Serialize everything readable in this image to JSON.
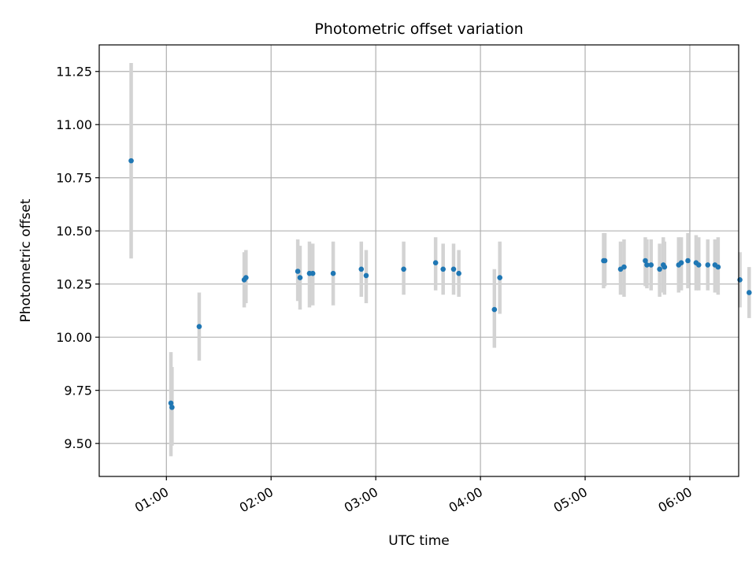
{
  "chart_data": {
    "type": "scatter",
    "title": "Photometric offset variation",
    "xlabel": "UTC time",
    "ylabel": "Photometric offset",
    "grid": true,
    "x_unit": "minutes after 00:00 UTC",
    "xlim": [
      21.5,
      388.0
    ],
    "ylim": [
      9.345,
      11.375
    ],
    "xticks": [
      {
        "value": 60,
        "label": "01:00"
      },
      {
        "value": 120,
        "label": "02:00"
      },
      {
        "value": 180,
        "label": "03:00"
      },
      {
        "value": 240,
        "label": "04:00"
      },
      {
        "value": 300,
        "label": "05:00"
      },
      {
        "value": 360,
        "label": "06:00"
      }
    ],
    "yticks": [
      {
        "value": 9.5,
        "label": "9.50"
      },
      {
        "value": 9.75,
        "label": "9.75"
      },
      {
        "value": 10.0,
        "label": "10.00"
      },
      {
        "value": 10.25,
        "label": "10.25"
      },
      {
        "value": 10.5,
        "label": "10.50"
      },
      {
        "value": 10.75,
        "label": "10.75"
      },
      {
        "value": 11.0,
        "label": "11.00"
      },
      {
        "value": 11.25,
        "label": "11.25"
      }
    ],
    "colors": {
      "point": "#1f77b4",
      "errorbar": "#d3d3d3",
      "grid": "#b0b0b0"
    },
    "points": [
      {
        "x": 39.8,
        "y": 10.83,
        "lo": 10.37,
        "hi": 11.29
      },
      {
        "x": 62.6,
        "y": 9.69,
        "lo": 9.44,
        "hi": 9.93
      },
      {
        "x": 63.2,
        "y": 9.67,
        "lo": 9.49,
        "hi": 9.86
      },
      {
        "x": 78.8,
        "y": 10.05,
        "lo": 9.89,
        "hi": 10.21
      },
      {
        "x": 104.6,
        "y": 10.27,
        "lo": 10.14,
        "hi": 10.4
      },
      {
        "x": 105.6,
        "y": 10.28,
        "lo": 10.16,
        "hi": 10.41
      },
      {
        "x": 135.3,
        "y": 10.31,
        "lo": 10.17,
        "hi": 10.46
      },
      {
        "x": 136.6,
        "y": 10.28,
        "lo": 10.13,
        "hi": 10.43
      },
      {
        "x": 142.0,
        "y": 10.3,
        "lo": 10.14,
        "hi": 10.45
      },
      {
        "x": 143.9,
        "y": 10.3,
        "lo": 10.15,
        "hi": 10.44
      },
      {
        "x": 155.6,
        "y": 10.3,
        "lo": 10.15,
        "hi": 10.45
      },
      {
        "x": 171.7,
        "y": 10.32,
        "lo": 10.19,
        "hi": 10.45
      },
      {
        "x": 174.5,
        "y": 10.29,
        "lo": 10.16,
        "hi": 10.41
      },
      {
        "x": 196.0,
        "y": 10.32,
        "lo": 10.2,
        "hi": 10.45
      },
      {
        "x": 214.3,
        "y": 10.35,
        "lo": 10.22,
        "hi": 10.47
      },
      {
        "x": 218.6,
        "y": 10.32,
        "lo": 10.2,
        "hi": 10.44
      },
      {
        "x": 224.6,
        "y": 10.32,
        "lo": 10.2,
        "hi": 10.44
      },
      {
        "x": 227.6,
        "y": 10.3,
        "lo": 10.19,
        "hi": 10.41
      },
      {
        "x": 248.0,
        "y": 10.13,
        "lo": 9.95,
        "hi": 10.32
      },
      {
        "x": 251.1,
        "y": 10.28,
        "lo": 10.11,
        "hi": 10.45
      },
      {
        "x": 310.6,
        "y": 10.36,
        "lo": 10.23,
        "hi": 10.49
      },
      {
        "x": 311.3,
        "y": 10.36,
        "lo": 10.24,
        "hi": 10.49
      },
      {
        "x": 320.3,
        "y": 10.32,
        "lo": 10.2,
        "hi": 10.45
      },
      {
        "x": 322.3,
        "y": 10.33,
        "lo": 10.19,
        "hi": 10.46
      },
      {
        "x": 334.5,
        "y": 10.36,
        "lo": 10.24,
        "hi": 10.47
      },
      {
        "x": 335.4,
        "y": 10.34,
        "lo": 10.23,
        "hi": 10.46
      },
      {
        "x": 337.8,
        "y": 10.34,
        "lo": 10.22,
        "hi": 10.46
      },
      {
        "x": 342.7,
        "y": 10.32,
        "lo": 10.19,
        "hi": 10.44
      },
      {
        "x": 344.8,
        "y": 10.34,
        "lo": 10.21,
        "hi": 10.47
      },
      {
        "x": 345.5,
        "y": 10.33,
        "lo": 10.2,
        "hi": 10.45
      },
      {
        "x": 353.6,
        "y": 10.34,
        "lo": 10.21,
        "hi": 10.47
      },
      {
        "x": 355.1,
        "y": 10.35,
        "lo": 10.22,
        "hi": 10.47
      },
      {
        "x": 358.9,
        "y": 10.36,
        "lo": 10.23,
        "hi": 10.49
      },
      {
        "x": 363.6,
        "y": 10.35,
        "lo": 10.22,
        "hi": 10.48
      },
      {
        "x": 365.1,
        "y": 10.34,
        "lo": 10.22,
        "hi": 10.47
      },
      {
        "x": 370.3,
        "y": 10.34,
        "lo": 10.22,
        "hi": 10.46
      },
      {
        "x": 374.4,
        "y": 10.34,
        "lo": 10.21,
        "hi": 10.46
      },
      {
        "x": 376.2,
        "y": 10.33,
        "lo": 10.2,
        "hi": 10.47
      },
      {
        "x": 388.7,
        "y": 10.27,
        "lo": 10.14,
        "hi": 10.4
      },
      {
        "x": 394.0,
        "y": 10.21,
        "lo": 10.09,
        "hi": 10.33
      }
    ]
  }
}
